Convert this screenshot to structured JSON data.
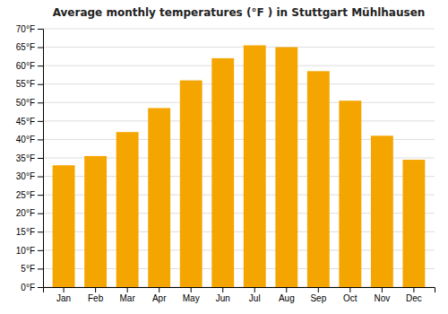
{
  "chart_data": {
    "type": "bar",
    "title": "Average monthly temperatures (°F ) in Stuttgart Mühlhausen",
    "categories": [
      "Jan",
      "Feb",
      "Mar",
      "Apr",
      "May",
      "Jun",
      "Jul",
      "Aug",
      "Sep",
      "Oct",
      "Nov",
      "Dec"
    ],
    "values": [
      33.0,
      35.5,
      42.0,
      48.5,
      56.0,
      62.0,
      65.5,
      65.0,
      58.5,
      50.5,
      41.0,
      34.5
    ],
    "color": "#F5A500",
    "ylim": [
      0,
      70
    ],
    "yticks": [
      {
        "value": 0,
        "label": "0°F"
      },
      {
        "value": 5,
        "label": "5°F"
      },
      {
        "value": 10,
        "label": "10°F"
      },
      {
        "value": 15,
        "label": "15°F"
      },
      {
        "value": 20,
        "label": "20°F"
      },
      {
        "value": 25,
        "label": "25°F"
      },
      {
        "value": 30,
        "label": "30°F"
      },
      {
        "value": 35,
        "label": "35°F"
      },
      {
        "value": 40,
        "label": "40°F"
      },
      {
        "value": 45,
        "label": "45°F"
      },
      {
        "value": 50,
        "label": "50°F"
      },
      {
        "value": 55,
        "label": "55°F"
      },
      {
        "value": 60,
        "label": "60°F"
      },
      {
        "value": 65,
        "label": "65°F"
      },
      {
        "value": 70,
        "label": "70°F"
      }
    ],
    "grid": true
  }
}
